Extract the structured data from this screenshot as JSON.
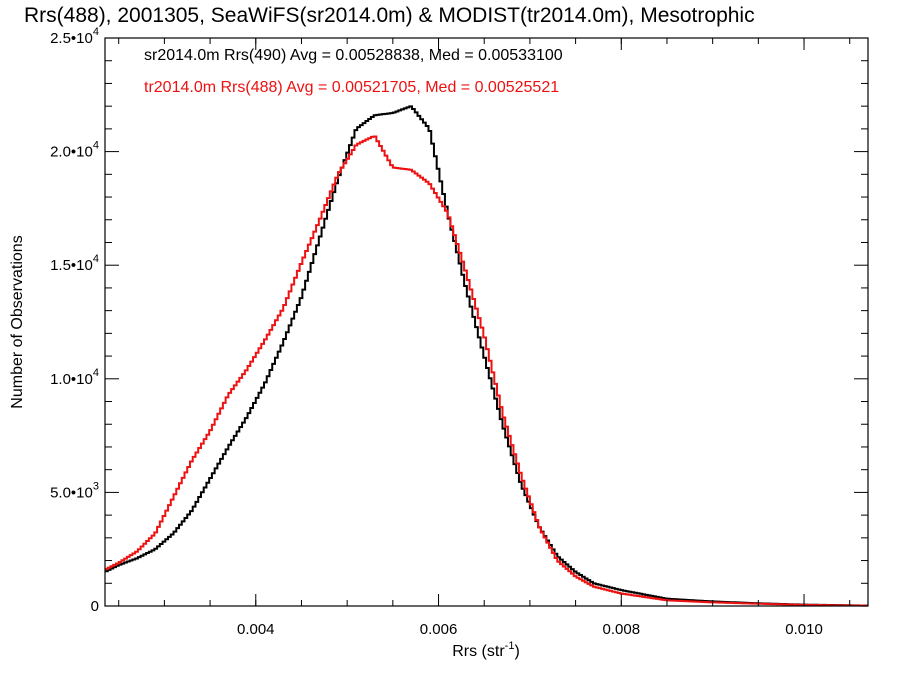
{
  "chart_data": {
    "type": "line",
    "title": "Rrs(488), 2001305, SeaWiFS(sr2014.0m) & MODIST(tr2014.0m), Mesotrophic",
    "xlabel": "Rrs (str",
    "xlabel_sup": "-1",
    "xlabel_close": ")",
    "ylabel": "Number of Observations",
    "xlim": [
      0.00235,
      0.0107
    ],
    "ylim": [
      0,
      25000
    ],
    "x_ticks": [
      {
        "value": 0.004,
        "label": "0.004"
      },
      {
        "value": 0.006,
        "label": "0.006"
      },
      {
        "value": 0.008,
        "label": "0.008"
      },
      {
        "value": 0.01,
        "label": "0.010"
      }
    ],
    "y_ticks": [
      {
        "value": 0,
        "mantissa": "0",
        "exp": ""
      },
      {
        "value": 5000,
        "mantissa": "5.0•10",
        "exp": "3"
      },
      {
        "value": 10000,
        "mantissa": "1.0•10",
        "exp": "4"
      },
      {
        "value": 15000,
        "mantissa": "1.5•10",
        "exp": "4"
      },
      {
        "value": 20000,
        "mantissa": "2.0•10",
        "exp": "4"
      },
      {
        "value": 25000,
        "mantissa": "2.5•10",
        "exp": "4"
      }
    ],
    "legend_placement": "top-left",
    "series": [
      {
        "legend": "sr2014.0m Rrs(490) Avg = 0.00528838, Med = 0.00533100",
        "color": "#000000",
        "points": [
          [
            0.00235,
            1500
          ],
          [
            0.0025,
            1800
          ],
          [
            0.0027,
            2100
          ],
          [
            0.0029,
            2500
          ],
          [
            0.0031,
            3200
          ],
          [
            0.0033,
            4200
          ],
          [
            0.0035,
            5600
          ],
          [
            0.0037,
            7000
          ],
          [
            0.0039,
            8300
          ],
          [
            0.0041,
            9800
          ],
          [
            0.0043,
            11600
          ],
          [
            0.0045,
            13600
          ],
          [
            0.0047,
            16200
          ],
          [
            0.0049,
            18800
          ],
          [
            0.0051,
            21000
          ],
          [
            0.0053,
            21600
          ],
          [
            0.0055,
            21700
          ],
          [
            0.0057,
            22000
          ],
          [
            0.0059,
            21000
          ],
          [
            0.0061,
            17300
          ],
          [
            0.0063,
            14000
          ],
          [
            0.0065,
            11000
          ],
          [
            0.0067,
            8000
          ],
          [
            0.0069,
            5400
          ],
          [
            0.0071,
            3500
          ],
          [
            0.0073,
            2200
          ],
          [
            0.0075,
            1500
          ],
          [
            0.0077,
            1000
          ],
          [
            0.008,
            700
          ],
          [
            0.0085,
            320
          ],
          [
            0.009,
            200
          ],
          [
            0.0095,
            120
          ],
          [
            0.01,
            60
          ],
          [
            0.0107,
            20
          ]
        ]
      },
      {
        "legend": "tr2014.0m Rrs(488) Avg = 0.00521705, Med = 0.00525521",
        "color": "#ee1111",
        "points": [
          [
            0.00235,
            1600
          ],
          [
            0.0025,
            1900
          ],
          [
            0.0027,
            2400
          ],
          [
            0.0029,
            3200
          ],
          [
            0.0031,
            4800
          ],
          [
            0.0033,
            6400
          ],
          [
            0.0035,
            7700
          ],
          [
            0.0037,
            9300
          ],
          [
            0.0039,
            10400
          ],
          [
            0.0041,
            11700
          ],
          [
            0.0043,
            13100
          ],
          [
            0.0045,
            15100
          ],
          [
            0.0047,
            17000
          ],
          [
            0.0049,
            19000
          ],
          [
            0.0051,
            20300
          ],
          [
            0.0053,
            20700
          ],
          [
            0.0055,
            19300
          ],
          [
            0.0057,
            19200
          ],
          [
            0.0059,
            18600
          ],
          [
            0.0061,
            17300
          ],
          [
            0.0063,
            14700
          ],
          [
            0.0065,
            11900
          ],
          [
            0.0067,
            8500
          ],
          [
            0.0069,
            5800
          ],
          [
            0.0071,
            3500
          ],
          [
            0.0073,
            2000
          ],
          [
            0.0075,
            1300
          ],
          [
            0.0077,
            850
          ],
          [
            0.008,
            550
          ],
          [
            0.0085,
            250
          ],
          [
            0.009,
            160
          ],
          [
            0.0095,
            100
          ],
          [
            0.01,
            50
          ],
          [
            0.0107,
            15
          ]
        ]
      }
    ]
  }
}
